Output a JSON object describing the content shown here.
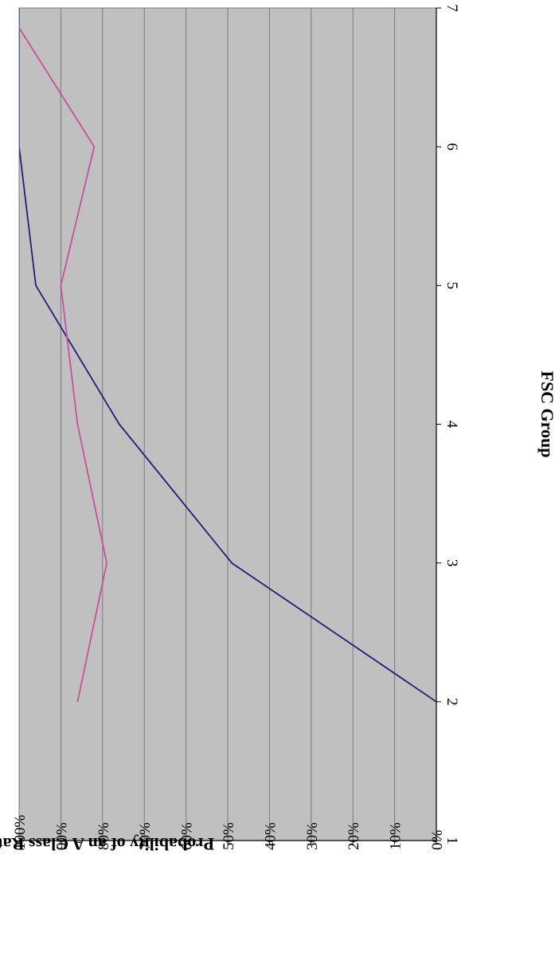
{
  "chart_data": {
    "type": "line",
    "orientation": "rotated-90-clockwise",
    "title": "",
    "xlabel": "FSC Group",
    "ylabel": "Probability of an A Class Rating",
    "x": [
      1,
      2,
      3,
      4,
      5,
      6,
      7
    ],
    "x_ticks": [
      "1",
      "2",
      "3",
      "4",
      "5",
      "6",
      "7"
    ],
    "xlim": [
      1,
      7
    ],
    "ylim": [
      0,
      1
    ],
    "y_ticks": [
      "0%",
      "10%",
      "20%",
      "30%",
      "40%",
      "50%",
      "60%",
      "70%",
      "80%",
      "90%",
      "100%"
    ],
    "grid": true,
    "legend": "none",
    "plot_background": "#c0c0c0",
    "series": [
      {
        "color": "#1f1f7a",
        "points": [
          [
            2,
            0.0
          ],
          [
            3,
            0.49
          ],
          [
            4,
            0.76
          ],
          [
            5,
            0.96
          ],
          [
            6,
            1.0
          ],
          [
            7,
            1.0
          ]
        ]
      },
      {
        "color": "#c8509a",
        "points": [
          [
            2,
            0.86
          ],
          [
            3,
            0.79
          ],
          [
            4,
            0.86
          ],
          [
            5,
            0.9
          ],
          [
            6,
            0.82
          ],
          [
            7,
            1.03
          ]
        ]
      }
    ]
  }
}
